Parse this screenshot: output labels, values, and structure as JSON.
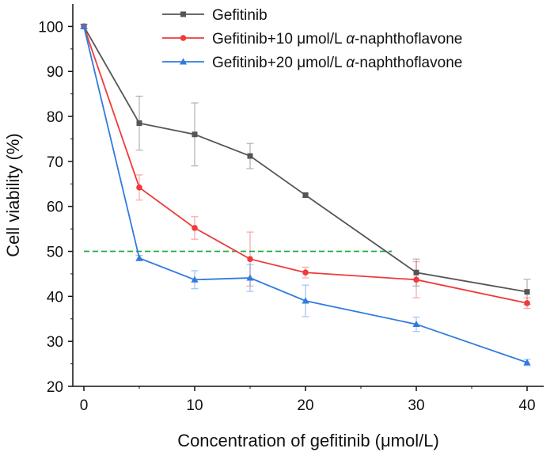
{
  "chart_data": {
    "type": "line",
    "xlabel": "Concentration of gefitinib (μmol/L)",
    "ylabel": "Cell viability (%)",
    "x": [
      0,
      5,
      10,
      15,
      20,
      30,
      40
    ],
    "xlim": [
      -1,
      41.5
    ],
    "ylim": [
      20,
      105
    ],
    "xticks": [
      0,
      10,
      20,
      30,
      40
    ],
    "yticks": [
      20,
      30,
      40,
      50,
      60,
      70,
      80,
      90,
      100
    ],
    "legend_position": "top-right",
    "grid": false,
    "series": [
      {
        "name": "Gefitinib",
        "legend_prefix": "Gefitinib",
        "legend_italic": "",
        "legend_suffix": "",
        "color": "#555555",
        "marker": "square",
        "values": [
          100,
          78.5,
          76,
          71.2,
          62.5,
          45.3,
          41
        ],
        "errors": [
          0.5,
          6,
          7,
          2.8,
          0.4,
          3,
          2.8
        ]
      },
      {
        "name": "Gefitinib+10 μmol/L α-naphthoflavone",
        "legend_prefix": "Gefitinib+10 μmol/L ",
        "legend_italic": "α",
        "legend_suffix": "-naphthoflavone",
        "color": "#ee3b3b",
        "marker": "circle",
        "values": [
          100,
          64.2,
          55.2,
          48.3,
          45.3,
          43.7,
          38.5
        ],
        "errors": [
          0.5,
          2.8,
          2.5,
          6,
          1.2,
          4,
          1.2
        ]
      },
      {
        "name": "Gefitinib+20 μmol/L α-naphthoflavone",
        "legend_prefix": "Gefitinib+20 μmol/L ",
        "legend_italic": "α",
        "legend_suffix": "-naphthoflavone",
        "color": "#2f7be0",
        "marker": "triangle",
        "values": [
          100,
          48.5,
          43.7,
          44.1,
          39,
          33.8,
          25.3
        ],
        "errors": [
          0.5,
          0.6,
          2,
          3,
          3.5,
          1.6,
          0.7
        ]
      }
    ],
    "reference_line": {
      "y": 50,
      "x_start": 0,
      "x_end": 27.8,
      "color": "#22aa44",
      "style": "dashed"
    }
  }
}
